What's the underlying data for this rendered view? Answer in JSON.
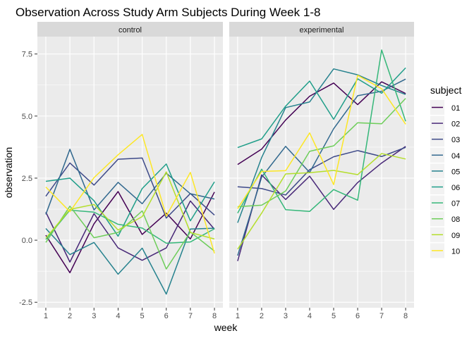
{
  "chart_data": {
    "type": "line",
    "title": "Observation Across Study Arm Subjects During Week 1-8",
    "xlabel": "week",
    "ylabel": "observation",
    "x": [
      1,
      2,
      3,
      4,
      5,
      6,
      7,
      8
    ],
    "x_ticks": [
      1,
      2,
      3,
      4,
      5,
      6,
      7,
      8
    ],
    "y_ticks": [
      -2.5,
      0.0,
      2.5,
      5.0,
      7.5
    ],
    "y_tick_labels": [
      "-2.5",
      "0.0",
      "2.5",
      "5.0",
      "7.5"
    ],
    "ylim": [
      -2.72,
      8.2
    ],
    "xlim": [
      0.65,
      8.35
    ],
    "grid": true,
    "legend": {
      "title": "subject",
      "position": "right"
    },
    "panels": [
      {
        "label": "control",
        "series": [
          {
            "name": "01",
            "color": "#440154",
            "values": [
              0.2,
              -1.31,
              0.66,
              1.96,
              0.23,
              1.09,
              0.05,
              1.94
            ]
          },
          {
            "name": "02",
            "color": "#482878",
            "values": [
              1.13,
              -0.88,
              1.07,
              -0.31,
              -0.81,
              -0.31,
              1.58,
              0.44
            ]
          },
          {
            "name": "03",
            "color": "#3E4A89",
            "values": [
              1.77,
              3.11,
              2.22,
              3.26,
              3.31,
              0.89,
              1.88,
              1.01
            ]
          },
          {
            "name": "04",
            "color": "#31688E",
            "values": [
              1.04,
              3.66,
              1.22,
              2.33,
              1.47,
              2.7,
              1.87,
              1.66
            ]
          },
          {
            "name": "05",
            "color": "#26828E",
            "values": [
              0.47,
              -0.58,
              -0.09,
              -1.37,
              -0.32,
              -2.17,
              0.45,
              0.48
            ]
          },
          {
            "name": "06",
            "color": "#1F9E89",
            "values": [
              2.37,
              2.5,
              1.59,
              0.16,
              2.08,
              3.07,
              0.78,
              2.35
            ]
          },
          {
            "name": "07",
            "color": "#35B779",
            "values": [
              0.03,
              1.21,
              1.13,
              0.64,
              0.49,
              -0.12,
              -0.07,
              0.46
            ]
          },
          {
            "name": "08",
            "color": "#6DCD59",
            "values": [
              -0.09,
              1.37,
              0.1,
              0.31,
              1.18,
              -1.16,
              0.33,
              -0.44
            ]
          },
          {
            "name": "09",
            "color": "#B4DE2C",
            "values": [
              0.08,
              1.24,
              1.44,
              0.41,
              0.95,
              2.75,
              0.31,
              0.05
            ]
          },
          {
            "name": "10",
            "color": "#FDE725",
            "values": [
              2.14,
              1.15,
              2.52,
              3.44,
              4.26,
              0.97,
              2.73,
              -0.53
            ]
          }
        ]
      },
      {
        "label": "experimental",
        "series": [
          {
            "name": "01",
            "color": "#440154",
            "values": [
              3.05,
              3.67,
              4.84,
              5.8,
              6.33,
              5.46,
              6.38,
              5.91
            ]
          },
          {
            "name": "02",
            "color": "#482878",
            "values": [
              -0.84,
              2.63,
              1.64,
              2.58,
              1.24,
              2.32,
              3.11,
              3.78
            ]
          },
          {
            "name": "03",
            "color": "#3E4A89",
            "values": [
              2.15,
              2.08,
              1.82,
              2.84,
              3.36,
              3.61,
              3.37,
              3.74
            ]
          },
          {
            "name": "04",
            "color": "#31688E",
            "values": [
              -0.62,
              2.54,
              3.78,
              2.73,
              4.49,
              5.82,
              6.0,
              6.49
            ]
          },
          {
            "name": "05",
            "color": "#26828E",
            "values": [
              0.7,
              3.33,
              5.34,
              5.57,
              6.9,
              6.66,
              6.23,
              5.87
            ]
          },
          {
            "name": "06",
            "color": "#1F9E89",
            "values": [
              3.73,
              4.08,
              5.4,
              6.41,
              4.87,
              6.5,
              5.92,
              6.94
            ]
          },
          {
            "name": "07",
            "color": "#35B779",
            "values": [
              1.09,
              2.86,
              1.23,
              1.16,
              2.04,
              1.61,
              7.66,
              4.79
            ]
          },
          {
            "name": "08",
            "color": "#6DCD59",
            "values": [
              1.35,
              1.41,
              1.98,
              3.58,
              3.8,
              4.73,
              4.69,
              5.71
            ]
          },
          {
            "name": "09",
            "color": "#B4DE2C",
            "values": [
              -0.36,
              1.09,
              2.67,
              2.72,
              2.81,
              2.64,
              3.49,
              3.27
            ]
          },
          {
            "name": "10",
            "color": "#FDE725",
            "values": [
              1.27,
              2.77,
              2.8,
              4.32,
              2.24,
              6.64,
              6.1,
              4.67
            ]
          }
        ]
      }
    ]
  }
}
